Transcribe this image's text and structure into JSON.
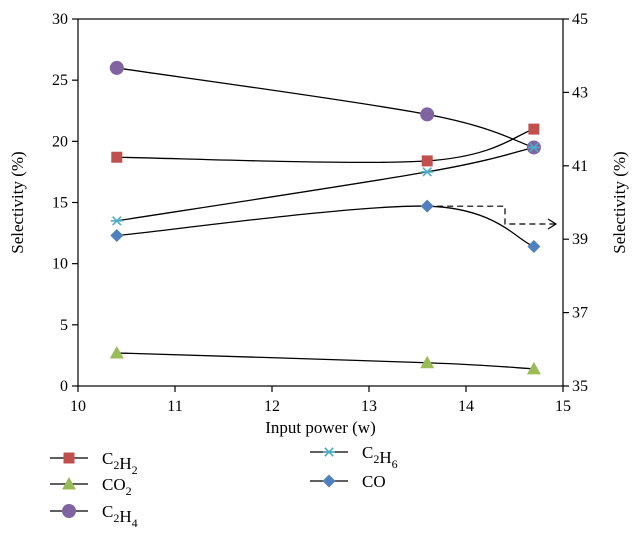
{
  "chart_data": {
    "type": "line",
    "xlabel": "Input power (w)",
    "ylabel_left": "Selectivity (%)",
    "ylabel_right": "Selectivity (%)",
    "xlim": [
      10,
      15
    ],
    "ylim_left": [
      0,
      30
    ],
    "ylim_right": [
      35,
      45
    ],
    "x_ticks": [
      "10",
      "11",
      "12",
      "13",
      "14",
      "15"
    ],
    "y_ticks_left": [
      "0",
      "5",
      "10",
      "15",
      "20",
      "25",
      "30"
    ],
    "y_ticks_right": [
      "35",
      "37",
      "39",
      "41",
      "43",
      "45"
    ],
    "grid": false,
    "legend_position": "bottom",
    "series": [
      {
        "key": "c2h2",
        "name": "C2H2",
        "label_base": [
          "C",
          "H"
        ],
        "label_sub": [
          "2",
          "2"
        ],
        "axis": "left",
        "marker": "square",
        "color": "#c0504d",
        "x": [
          10.4,
          13.6,
          14.7
        ],
        "y": [
          18.7,
          18.4,
          21.0
        ]
      },
      {
        "key": "co2",
        "name": "CO2",
        "label_base": [
          "CO"
        ],
        "label_sub": [
          "2"
        ],
        "axis": "left",
        "marker": "triangle",
        "color": "#9bbb59",
        "x": [
          10.4,
          13.6,
          14.7
        ],
        "y": [
          2.7,
          1.9,
          1.4
        ]
      },
      {
        "key": "c2h4",
        "name": "C2H4",
        "label_base": [
          "C",
          "H"
        ],
        "label_sub": [
          "2",
          "4"
        ],
        "axis": "left",
        "marker": "circle",
        "color": "#8064a2",
        "x": [
          10.4,
          13.6,
          14.7
        ],
        "y": [
          26.0,
          22.2,
          19.5
        ]
      },
      {
        "key": "c2h6",
        "name": "C2H6",
        "label_base": [
          "C",
          "H"
        ],
        "label_sub": [
          "2",
          "6"
        ],
        "axis": "left",
        "marker": "asterisk",
        "color": "#4bacc6",
        "x": [
          10.4,
          13.6,
          14.7
        ],
        "y": [
          13.5,
          17.5,
          19.5
        ]
      },
      {
        "key": "co",
        "name": "CO",
        "label_base": [
          "CO"
        ],
        "label_sub": [
          ""
        ],
        "axis": "right",
        "marker": "diamond",
        "color": "#4f81bd",
        "x": [
          10.4,
          13.6,
          14.7
        ],
        "y": [
          39.1,
          39.9,
          38.8
        ]
      }
    ]
  }
}
